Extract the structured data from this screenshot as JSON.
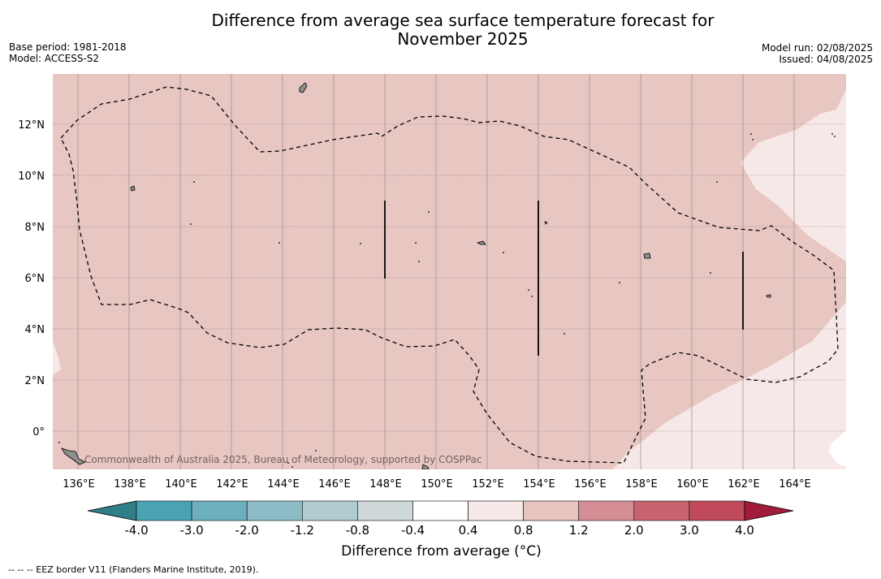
{
  "title_line1": "Difference from average sea surface temperature forecast for",
  "title_line2": "November 2025",
  "base_period": "Base period: 1981-2018",
  "model": "Model: ACCESS-S2",
  "model_run": "Model run: 02/08/2025",
  "issued": "Issued: 04/08/2025",
  "credit": "Commonwealth of Australia 2025, Bureau of Meteorology, supported by COSPPac",
  "lon_labels": [
    "136°E",
    "138°E",
    "140°E",
    "142°E",
    "144°E",
    "146°E",
    "148°E",
    "150°E",
    "152°E",
    "154°E",
    "156°E",
    "158°E",
    "160°E",
    "162°E",
    "164°E"
  ],
  "lat_labels": [
    "12°N",
    "10°N",
    "8°N",
    "6°N",
    "4°N",
    "2°N",
    "0°"
  ],
  "colorbar": {
    "title": "Difference from average (°C)",
    "tick_labels": [
      "-4.0",
      "-3.0",
      "-2.0",
      "-1.2",
      "-0.8",
      "-0.4",
      "0.4",
      "0.8",
      "1.2",
      "2.0",
      "3.0",
      "4.0"
    ],
    "colors": [
      "#2f7f86",
      "#4aa3b3",
      "#6eafbd",
      "#8ebcc6",
      "#b0cccf",
      "#cfd9dc",
      "#ffffff",
      "#f6e9e7",
      "#e8c5c0",
      "#d58e95",
      "#c86470",
      "#c04a5a",
      "#a01c38"
    ]
  },
  "footnote": "--  --  -- EEZ border V11 (Flanders Marine Institute, 2019).",
  "colors": {
    "map_fill": "#e8c6c2",
    "map_light": "#f5e8e6"
  }
}
